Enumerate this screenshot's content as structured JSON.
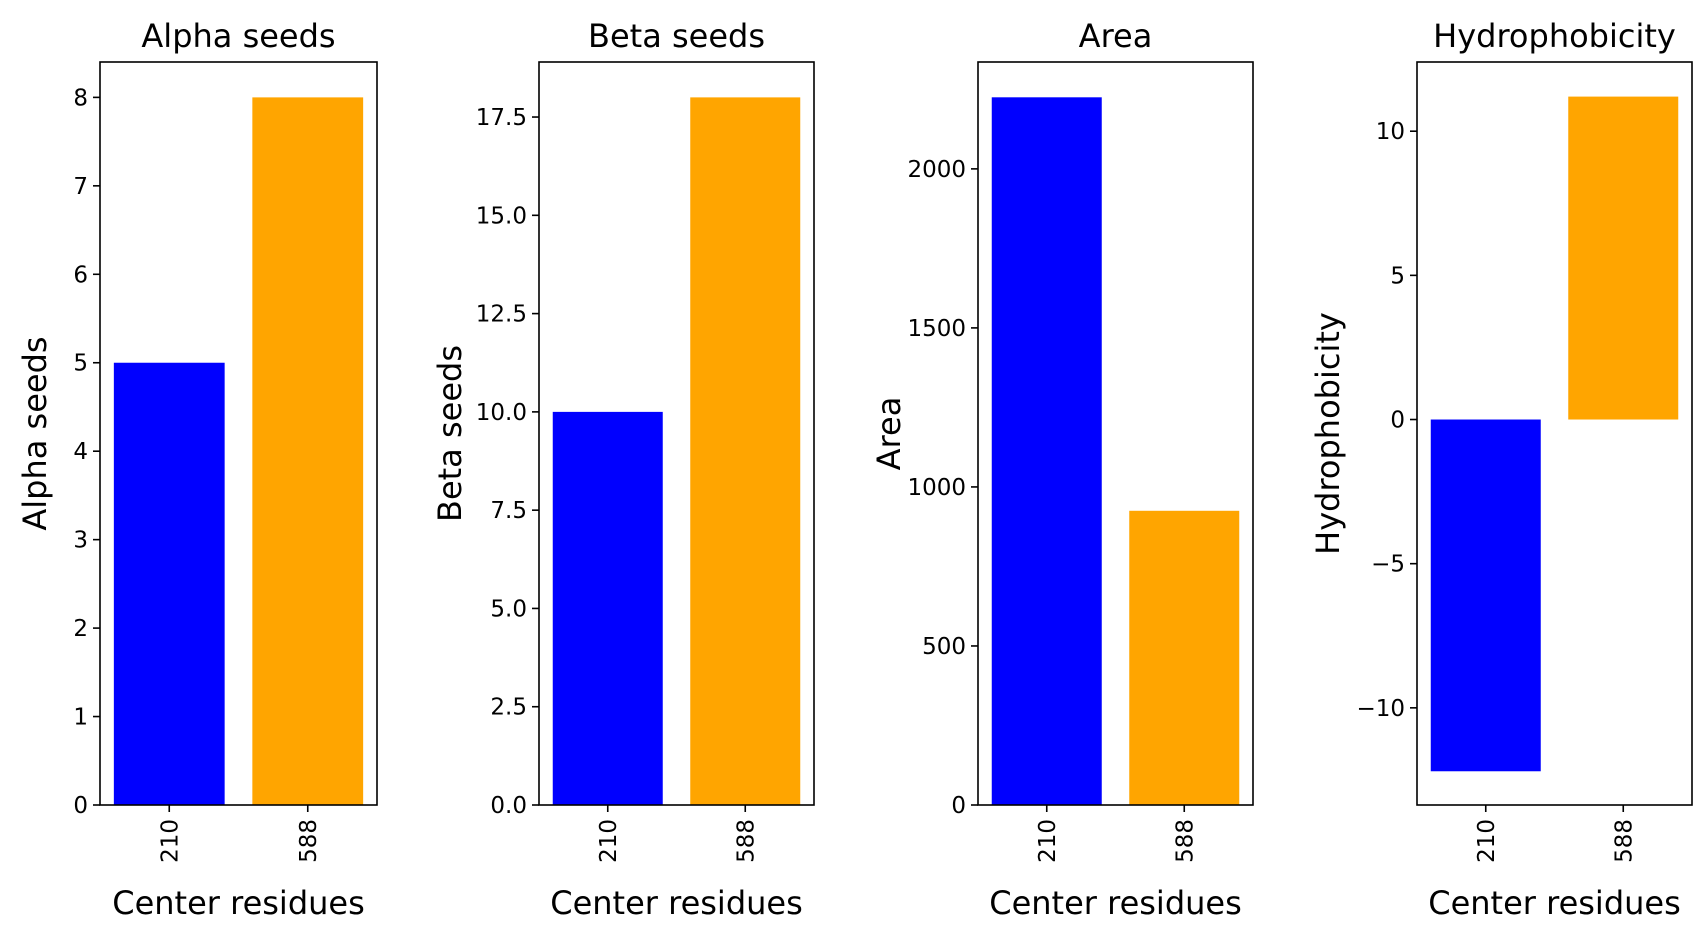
{
  "chart_data": [
    {
      "type": "bar",
      "title": "Alpha seeds",
      "xlabel": "Center residues",
      "ylabel": "Alpha seeds",
      "categories": [
        "210",
        "588"
      ],
      "values": [
        5,
        8
      ],
      "colors": [
        "#0000ff",
        "#ffa500"
      ],
      "ylim": [
        0,
        8.4
      ],
      "yticks": [
        0,
        1,
        2,
        3,
        4,
        5,
        6,
        7,
        8
      ],
      "ytick_labels": [
        "0",
        "1",
        "2",
        "3",
        "4",
        "5",
        "6",
        "7",
        "8"
      ],
      "grid": false
    },
    {
      "type": "bar",
      "title": "Beta seeds",
      "xlabel": "Center residues",
      "ylabel": "Beta seeds",
      "categories": [
        "210",
        "588"
      ],
      "values": [
        10,
        18
      ],
      "colors": [
        "#0000ff",
        "#ffa500"
      ],
      "ylim": [
        0,
        18.9
      ],
      "yticks": [
        0,
        2.5,
        5,
        7.5,
        10,
        12.5,
        15,
        17.5
      ],
      "ytick_labels": [
        "0.0",
        "2.5",
        "5.0",
        "7.5",
        "10.0",
        "12.5",
        "15.0",
        "17.5"
      ],
      "grid": false
    },
    {
      "type": "bar",
      "title": "Area",
      "xlabel": "Center residues",
      "ylabel": "Area",
      "categories": [
        "210",
        "588"
      ],
      "values": [
        2225,
        925
      ],
      "colors": [
        "#0000ff",
        "#ffa500"
      ],
      "ylim": [
        0,
        2336
      ],
      "yticks": [
        0,
        500,
        1000,
        1500,
        2000
      ],
      "ytick_labels": [
        "0",
        "500",
        "1000",
        "1500",
        "2000"
      ],
      "grid": false
    },
    {
      "type": "bar",
      "title": "Hydrophobicity",
      "xlabel": "Center residues",
      "ylabel": "Hydrophobicity",
      "categories": [
        "210",
        "588"
      ],
      "values": [
        -12.2,
        11.2
      ],
      "colors": [
        "#0000ff",
        "#ffa500"
      ],
      "ylim": [
        -13.37,
        12.4
      ],
      "yticks": [
        -10,
        -5,
        0,
        5,
        10
      ],
      "ytick_labels": [
        "−10",
        "−5",
        "0",
        "5",
        "10"
      ],
      "grid": false
    }
  ]
}
